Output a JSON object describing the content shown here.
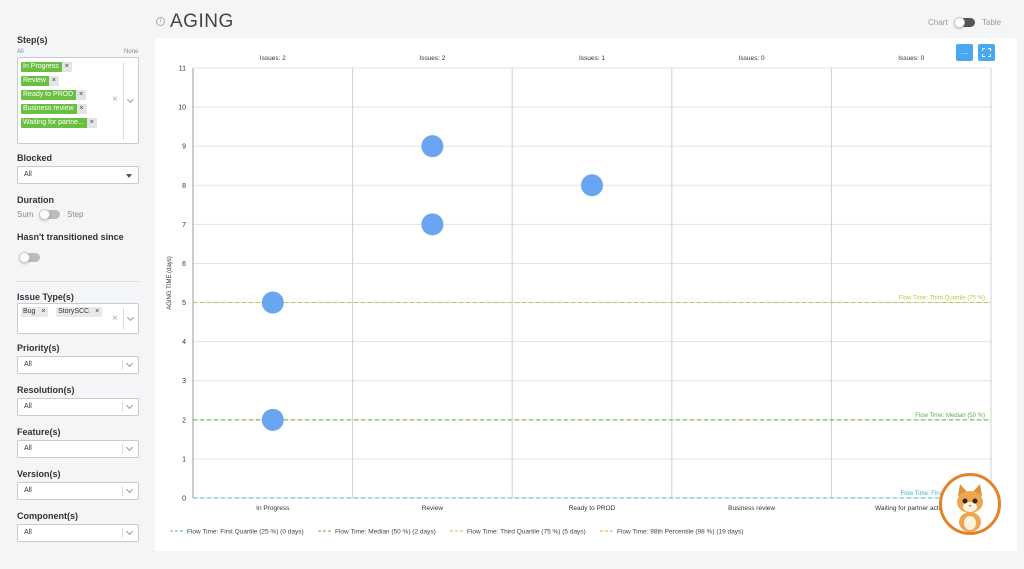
{
  "sidebar": {
    "steps_label": "Step(s)",
    "all_label": "All",
    "none_label": "None",
    "steps": [
      "In Progress",
      "Review",
      "Ready to PROD",
      "Business review",
      "Waiting for partne..."
    ],
    "blocked_label": "Blocked",
    "blocked_value": "All",
    "duration_label": "Duration",
    "duration_left": "Sum",
    "duration_right": "Step",
    "hasnt_transitioned_label": "Hasn't transitioned since",
    "issue_types_label": "Issue Type(s)",
    "issue_types": [
      "Bug",
      "StorySCC"
    ],
    "priority_label": "Priority(s)",
    "priority_value": "All",
    "resolution_label": "Resolution(s)",
    "resolution_value": "All",
    "feature_label": "Feature(s)",
    "feature_value": "All",
    "version_label": "Version(s)",
    "version_value": "All",
    "component_label": "Component(s)",
    "component_value": "All"
  },
  "header": {
    "title": "AGING",
    "chart_label": "Chart",
    "table_label": "Table",
    "collapse_label": "..."
  },
  "chart_data": {
    "type": "scatter",
    "ylabel": "AGING TIME (days)",
    "ylim": [
      0,
      11
    ],
    "yticks": [
      0,
      1,
      2,
      3,
      4,
      5,
      6,
      7,
      8,
      9,
      10,
      11
    ],
    "categories": [
      "In Progress",
      "Review",
      "Ready to PROD",
      "Business review",
      "Waiting for partner action"
    ],
    "issue_counts": [
      "Issues: 2",
      "Issues: 2",
      "Issues: 1",
      "Issues: 0",
      "Issues: 0"
    ],
    "points": [
      {
        "category": "In Progress",
        "y": 5
      },
      {
        "category": "In Progress",
        "y": 2
      },
      {
        "category": "Review",
        "y": 9
      },
      {
        "category": "Review",
        "y": 7
      },
      {
        "category": "Ready to PROD",
        "y": 8
      }
    ],
    "point_color": "#6aa5f2",
    "reference_lines": [
      {
        "label": "Flow Time: Third Quartile (75 %)",
        "y": 5,
        "color": "#b9c94a"
      },
      {
        "label": "Flow Time: Median (50 %)",
        "y": 2,
        "color": "#5cad4a"
      },
      {
        "label": "Flow Time: First Quartile (25 %)",
        "y": 0,
        "color": "#4ab3d6"
      }
    ],
    "legend": [
      {
        "label": "Flow Time: First Quartile (25 %) (0 days)",
        "color": "#4ab3d6"
      },
      {
        "label": "Flow Time: Median (50 %) (2 days)",
        "color": "#5cad4a"
      },
      {
        "label": "Flow Time: Third Quartile (75 %) (5 days)",
        "color": "#b9c94a"
      },
      {
        "label": "Flow Time: 98th Percentile (98 %) (19 days)",
        "color": "#e8a24a"
      }
    ],
    "legend_position": "bottom"
  }
}
